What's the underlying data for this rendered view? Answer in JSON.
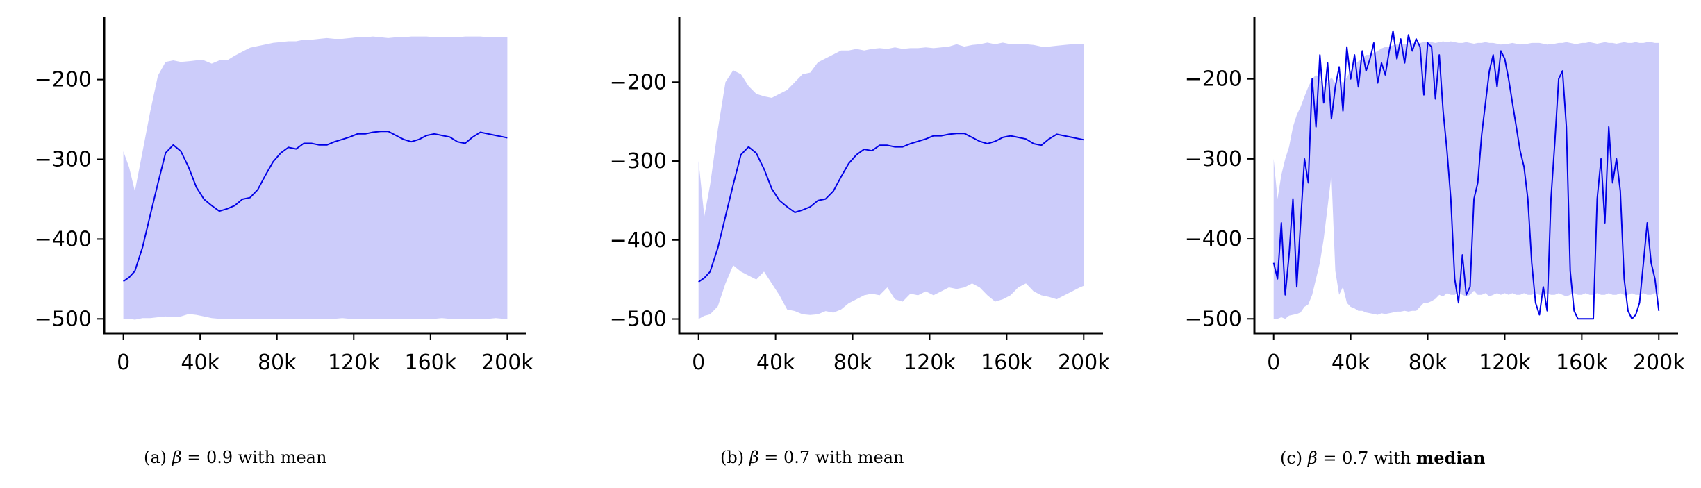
{
  "captions": [
    {
      "prefix": "(a)",
      "symbol": "β",
      "eq": "= 0.9 with",
      "stat": "mean"
    },
    {
      "prefix": "(b)",
      "symbol": "β",
      "eq": "= 0.7 with",
      "stat": "mean"
    },
    {
      "prefix": "(c)",
      "symbol": "β",
      "eq": "= 0.7 with",
      "stat": "median"
    }
  ],
  "colors": {
    "line": "#0000e6",
    "band": "#ccccfa",
    "axis": "#000000"
  },
  "chart_data": [
    {
      "type": "line",
      "x_ticks": [
        0,
        40000,
        80000,
        120000,
        160000,
        200000
      ],
      "x_tick_labels": [
        "0",
        "40k",
        "80k",
        "120k",
        "160k",
        "200k"
      ],
      "y_ticks": [
        -500,
        -400,
        -300,
        -200
      ],
      "y_tick_labels": [
        "−500",
        "−400",
        "−300",
        "−200"
      ],
      "xlim": [
        -10000,
        210000
      ],
      "ylim": [
        -518,
        -122
      ],
      "series": [
        {
          "x": [
            0,
            3000,
            6000,
            10000,
            14000,
            18000,
            22000,
            26000,
            30000,
            34000,
            38000,
            42000,
            46000,
            50000,
            54000,
            58000,
            62000,
            66000,
            70000,
            74000,
            78000,
            82000,
            86000,
            90000,
            94000,
            98000,
            102000,
            106000,
            110000,
            114000,
            118000,
            122000,
            126000,
            130000,
            134000,
            138000,
            142000,
            146000,
            150000,
            154000,
            158000,
            162000,
            166000,
            170000,
            174000,
            178000,
            182000,
            186000,
            190000,
            194000,
            198000,
            200000
          ],
          "y": [
            -453,
            -448,
            -440,
            -410,
            -370,
            -330,
            -292,
            -282,
            -290,
            -310,
            -335,
            -350,
            -358,
            -365,
            -362,
            -358,
            -350,
            -348,
            -338,
            -320,
            -303,
            -292,
            -285,
            -287,
            -280,
            -280,
            -282,
            -282,
            -278,
            -275,
            -272,
            -268,
            -268,
            -266,
            -265,
            -265,
            -270,
            -275,
            -278,
            -275,
            -270,
            -268,
            -270,
            -272,
            -278,
            -280,
            -272,
            -266,
            -268,
            -270,
            -272,
            -273
          ],
          "band_upper": [
            -290,
            -310,
            -340,
            -290,
            -240,
            -195,
            -178,
            -176,
            -178,
            -177,
            -176,
            -176,
            -180,
            -176,
            -176,
            -170,
            -165,
            -160,
            -158,
            -156,
            -154,
            -153,
            -152,
            -152,
            -150,
            -150,
            -149,
            -148,
            -149,
            -149,
            -148,
            -147,
            -147,
            -146,
            -147,
            -148,
            -147,
            -147,
            -146,
            -146,
            -146,
            -147,
            -147,
            -147,
            -147,
            -146,
            -146,
            -146,
            -147,
            -147,
            -147,
            -147
          ],
          "band_lower": [
            -500,
            -500,
            -501,
            -499,
            -499,
            -498,
            -497,
            -498,
            -497,
            -494,
            -495,
            -497,
            -499,
            -500,
            -500,
            -500,
            -500,
            -500,
            -500,
            -500,
            -500,
            -500,
            -500,
            -500,
            -500,
            -500,
            -500,
            -500,
            -500,
            -499,
            -500,
            -500,
            -500,
            -500,
            -500,
            -500,
            -500,
            -500,
            -500,
            -500,
            -500,
            -500,
            -499,
            -500,
            -500,
            -500,
            -500,
            -500,
            -500,
            -499,
            -500,
            -500
          ]
        }
      ]
    },
    {
      "type": "line",
      "x_ticks": [
        0,
        40000,
        80000,
        120000,
        160000,
        200000
      ],
      "x_tick_labels": [
        "0",
        "40k",
        "80k",
        "120k",
        "160k",
        "200k"
      ],
      "y_ticks": [
        -500,
        -400,
        -300,
        -200
      ],
      "y_tick_labels": [
        "−500",
        "−400",
        "−300",
        "−200"
      ],
      "xlim": [
        -10000,
        210000
      ],
      "ylim": [
        -518,
        -118
      ],
      "series": [
        {
          "x": [
            0,
            3000,
            6000,
            10000,
            14000,
            18000,
            22000,
            26000,
            30000,
            34000,
            38000,
            42000,
            46000,
            50000,
            54000,
            58000,
            62000,
            66000,
            70000,
            74000,
            78000,
            82000,
            86000,
            90000,
            94000,
            98000,
            102000,
            106000,
            110000,
            114000,
            118000,
            122000,
            126000,
            130000,
            134000,
            138000,
            142000,
            146000,
            150000,
            154000,
            158000,
            162000,
            166000,
            170000,
            174000,
            178000,
            182000,
            186000,
            190000,
            194000,
            198000,
            200000
          ],
          "y": [
            -453,
            -448,
            -440,
            -410,
            -370,
            -330,
            -292,
            -282,
            -290,
            -310,
            -335,
            -350,
            -358,
            -365,
            -362,
            -358,
            -350,
            -348,
            -338,
            -320,
            -303,
            -292,
            -285,
            -287,
            -280,
            -280,
            -282,
            -282,
            -278,
            -275,
            -272,
            -268,
            -268,
            -266,
            -265,
            -265,
            -270,
            -275,
            -278,
            -275,
            -270,
            -268,
            -270,
            -272,
            -278,
            -280,
            -272,
            -266,
            -268,
            -270,
            -272,
            -273
          ],
          "band_upper": [
            -300,
            -370,
            -330,
            -260,
            -200,
            -185,
            -190,
            -205,
            -215,
            -218,
            -220,
            -215,
            -210,
            -200,
            -190,
            -188,
            -175,
            -170,
            -165,
            -160,
            -160,
            -158,
            -160,
            -158,
            -157,
            -158,
            -156,
            -158,
            -157,
            -157,
            -156,
            -157,
            -156,
            -155,
            -152,
            -155,
            -153,
            -152,
            -150,
            -152,
            -150,
            -152,
            -152,
            -152,
            -153,
            -155,
            -155,
            -154,
            -153,
            -152,
            -152,
            -152
          ],
          "band_lower": [
            -500,
            -496,
            -494,
            -484,
            -455,
            -432,
            -440,
            -445,
            -450,
            -440,
            -455,
            -470,
            -488,
            -490,
            -494,
            -495,
            -494,
            -490,
            -492,
            -488,
            -480,
            -475,
            -470,
            -468,
            -470,
            -460,
            -475,
            -478,
            -468,
            -470,
            -465,
            -470,
            -465,
            -460,
            -462,
            -460,
            -455,
            -460,
            -470,
            -478,
            -475,
            -470,
            -460,
            -455,
            -465,
            -470,
            -472,
            -475,
            -470,
            -465,
            -460,
            -458
          ]
        }
      ]
    },
    {
      "type": "line",
      "x_ticks": [
        0,
        40000,
        80000,
        120000,
        160000,
        200000
      ],
      "x_tick_labels": [
        "0",
        "40k",
        "80k",
        "120k",
        "160k",
        "200k"
      ],
      "y_ticks": [
        -500,
        -400,
        -300,
        -200
      ],
      "y_tick_labels": [
        "−500",
        "−400",
        "−300",
        "−200"
      ],
      "xlim": [
        -10000,
        210000
      ],
      "ylim": [
        -518,
        -123
      ],
      "series": [
        {
          "x": [
            0,
            2000,
            4000,
            6000,
            8000,
            10000,
            12000,
            14000,
            16000,
            18000,
            20000,
            22000,
            24000,
            26000,
            28000,
            30000,
            32000,
            34000,
            36000,
            38000,
            40000,
            42000,
            44000,
            46000,
            48000,
            50000,
            52000,
            54000,
            56000,
            58000,
            60000,
            62000,
            64000,
            66000,
            68000,
            70000,
            72000,
            74000,
            76000,
            78000,
            80000,
            82000,
            84000,
            86000,
            88000,
            90000,
            92000,
            94000,
            96000,
            98000,
            100000,
            102000,
            104000,
            106000,
            108000,
            110000,
            112000,
            114000,
            116000,
            118000,
            120000,
            122000,
            124000,
            126000,
            128000,
            130000,
            132000,
            134000,
            136000,
            138000,
            140000,
            142000,
            144000,
            146000,
            148000,
            150000,
            152000,
            154000,
            156000,
            158000,
            160000,
            162000,
            164000,
            166000,
            168000,
            170000,
            172000,
            174000,
            176000,
            178000,
            180000,
            182000,
            184000,
            186000,
            188000,
            190000,
            192000,
            194000,
            196000,
            198000,
            200000
          ],
          "y": [
            -430,
            -450,
            -380,
            -470,
            -420,
            -350,
            -460,
            -380,
            -300,
            -330,
            -200,
            -260,
            -170,
            -230,
            -180,
            -250,
            -210,
            -185,
            -240,
            -160,
            -200,
            -170,
            -210,
            -165,
            -190,
            -175,
            -155,
            -205,
            -180,
            -195,
            -165,
            -140,
            -175,
            -150,
            -180,
            -145,
            -165,
            -150,
            -160,
            -220,
            -155,
            -160,
            -225,
            -170,
            -240,
            -290,
            -350,
            -450,
            -480,
            -420,
            -470,
            -460,
            -350,
            -330,
            -270,
            -230,
            -190,
            -170,
            -210,
            -165,
            -175,
            -200,
            -230,
            -260,
            -290,
            -310,
            -350,
            -430,
            -480,
            -495,
            -460,
            -490,
            -350,
            -280,
            -200,
            -190,
            -260,
            -440,
            -490,
            -500,
            -500,
            -500,
            -500,
            -500,
            -350,
            -300,
            -380,
            -260,
            -330,
            -300,
            -340,
            -450,
            -490,
            -500,
            -495,
            -480,
            -430,
            -380,
            -430,
            -450,
            -490
          ],
          "band_upper": [
            -300,
            -350,
            -320,
            -300,
            -285,
            -260,
            -245,
            -235,
            -222,
            -210,
            -200,
            -195,
            -200,
            -210,
            -205,
            -198,
            -205,
            -200,
            -205,
            -198,
            -190,
            -182,
            -178,
            -175,
            -170,
            -170,
            -168,
            -165,
            -162,
            -160,
            -160,
            -158,
            -157,
            -157,
            -156,
            -156,
            -155,
            -155,
            -155,
            -154,
            -154,
            -154,
            -155,
            -154,
            -153,
            -154,
            -153,
            -154,
            -155,
            -155,
            -154,
            -155,
            -156,
            -155,
            -155,
            -154,
            -155,
            -155,
            -156,
            -157,
            -156,
            -156,
            -155,
            -156,
            -157,
            -156,
            -156,
            -155,
            -155,
            -155,
            -156,
            -157,
            -156,
            -156,
            -155,
            -155,
            -154,
            -155,
            -156,
            -156,
            -155,
            -155,
            -154,
            -155,
            -156,
            -155,
            -154,
            -155,
            -155,
            -156,
            -155,
            -154,
            -155,
            -155,
            -154,
            -155,
            -155,
            -154,
            -154,
            -155,
            -155
          ],
          "band_lower": [
            -500,
            -500,
            -498,
            -500,
            -496,
            -495,
            -494,
            -492,
            -485,
            -482,
            -470,
            -450,
            -430,
            -400,
            -360,
            -320,
            -440,
            -470,
            -460,
            -480,
            -485,
            -487,
            -490,
            -490,
            -492,
            -493,
            -494,
            -495,
            -493,
            -494,
            -493,
            -492,
            -491,
            -491,
            -490,
            -491,
            -490,
            -490,
            -485,
            -480,
            -480,
            -478,
            -475,
            -470,
            -472,
            -468,
            -470,
            -470,
            -468,
            -470,
            -472,
            -470,
            -465,
            -470,
            -470,
            -468,
            -472,
            -470,
            -468,
            -470,
            -468,
            -470,
            -468,
            -470,
            -470,
            -468,
            -470,
            -470,
            -468,
            -470,
            -470,
            -468,
            -470,
            -470,
            -468,
            -470,
            -472,
            -470,
            -468,
            -470,
            -470,
            -468,
            -470,
            -470,
            -468,
            -470,
            -470,
            -468,
            -470,
            -470,
            -468,
            -470,
            -470,
            -468,
            -470,
            -470,
            -468,
            -470,
            -470,
            -468,
            -470
          ]
        }
      ]
    }
  ]
}
